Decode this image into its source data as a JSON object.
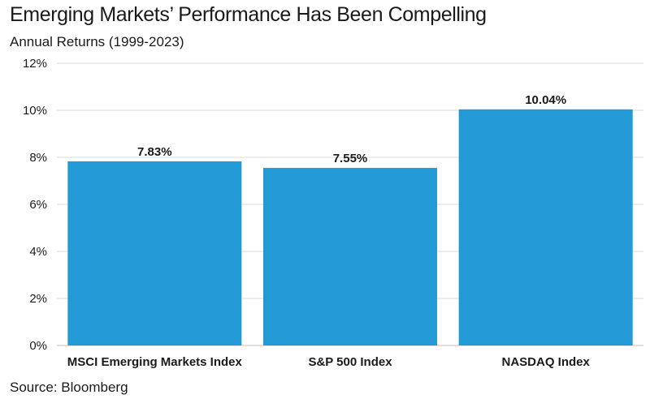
{
  "title": "Emerging Markets’ Performance Has Been Compelling",
  "subtitle": "Annual Returns (1999-2023)",
  "source": "Source: Bloomberg",
  "chart_data": {
    "type": "bar",
    "categories": [
      "MSCI Emerging Markets Index",
      "S&P 500 Index",
      "NASDAQ Index"
    ],
    "values": [
      7.83,
      7.55,
      10.04
    ],
    "data_labels": [
      "7.83%",
      "7.55%",
      "10.04%"
    ],
    "ylim": [
      0,
      12
    ],
    "yticks": [
      0,
      2,
      4,
      6,
      8,
      10,
      12
    ],
    "ytick_labels": [
      "0%",
      "2%",
      "4%",
      "6%",
      "8%",
      "10%",
      "12%"
    ],
    "grid": true,
    "bar_color": "#2399d6",
    "grid_color": "#d9d9d9"
  }
}
